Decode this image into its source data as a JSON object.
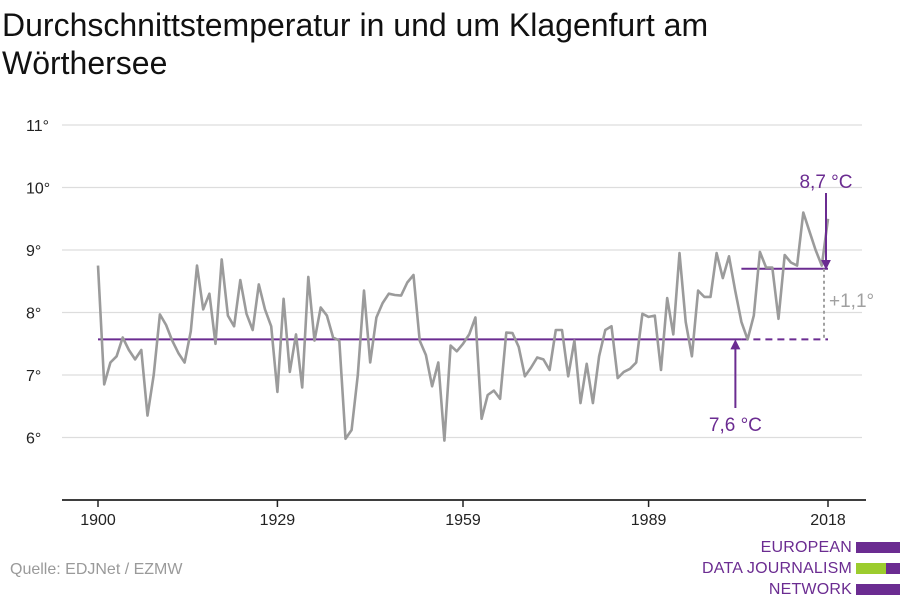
{
  "title": "Durchschnittstemperatur in und um Klagenfurt am Wörthersee",
  "source": "Quelle: EDJNet / EZMW",
  "logo": {
    "lines": [
      "EUROPEAN",
      "DATA JOURNALISM",
      "NETWORK"
    ],
    "colors": {
      "purple": "#6b2c91",
      "green": "#9ccc2e"
    }
  },
  "colors": {
    "series": "#9b9b9b",
    "accent": "#6b2c91",
    "grid": "#dddddd",
    "axis": "#222222"
  },
  "chart_data": {
    "type": "line",
    "title": "Durchschnittstemperatur in und um Klagenfurt am Wörthersee",
    "xlabel": "",
    "ylabel": "",
    "xlim": [
      1900,
      2018
    ],
    "ylim": [
      5,
      11
    ],
    "x_ticks": [
      1900,
      1929,
      1959,
      1989,
      2018
    ],
    "x_tick_labels": [
      "1900",
      "1929",
      "1959",
      "1989",
      "2018"
    ],
    "y_ticks": [
      6,
      7,
      8,
      9,
      10,
      11
    ],
    "y_tick_labels": [
      "6°",
      "7°",
      "8°",
      "9°",
      "10°",
      "11°"
    ],
    "grid": true,
    "series": [
      {
        "x": [
          1900,
          1901,
          1902,
          1903,
          1904,
          1905,
          1906,
          1907,
          1908,
          1909,
          1910,
          1911,
          1912,
          1913,
          1914,
          1915,
          1916,
          1917,
          1918,
          1919,
          1920,
          1921,
          1922,
          1923,
          1924,
          1925,
          1926,
          1927,
          1928,
          1929,
          1930,
          1931,
          1932,
          1933,
          1934,
          1935,
          1936,
          1937,
          1938,
          1939,
          1940,
          1941,
          1942,
          1943,
          1944,
          1945,
          1946,
          1947,
          1948,
          1949,
          1950,
          1951,
          1952,
          1953,
          1954,
          1955,
          1956,
          1957,
          1958,
          1959,
          1960,
          1961,
          1962,
          1963,
          1964,
          1965,
          1966,
          1967,
          1968,
          1969,
          1970,
          1971,
          1972,
          1973,
          1974,
          1975,
          1976,
          1977,
          1978,
          1979,
          1980,
          1981,
          1982,
          1983,
          1984,
          1985,
          1986,
          1987,
          1988,
          1989,
          1990,
          1991,
          1992,
          1993,
          1994,
          1995,
          1996,
          1997,
          1998,
          1999,
          2000,
          2001,
          2002,
          2003,
          2004,
          2005,
          2006,
          2007,
          2008,
          2009,
          2010,
          2011,
          2012,
          2013,
          2014,
          2015,
          2016,
          2017,
          2018
        ],
        "values": [
          8.75,
          6.85,
          7.2,
          7.3,
          7.6,
          7.4,
          7.25,
          7.4,
          6.35,
          7.0,
          7.97,
          7.8,
          7.55,
          7.35,
          7.2,
          7.7,
          8.75,
          8.05,
          8.3,
          7.5,
          8.85,
          7.95,
          7.78,
          8.52,
          7.98,
          7.72,
          8.45,
          8.05,
          7.78,
          6.73,
          8.22,
          7.05,
          7.65,
          6.8,
          8.57,
          7.55,
          8.08,
          7.95,
          7.6,
          7.55,
          5.98,
          6.12,
          7.0,
          8.35,
          7.2,
          7.92,
          8.15,
          8.3,
          8.28,
          8.27,
          8.48,
          8.6,
          7.55,
          7.32,
          6.82,
          7.2,
          5.95,
          7.47,
          7.38,
          7.5,
          7.65,
          7.92,
          6.3,
          6.68,
          6.75,
          6.62,
          7.68,
          7.67,
          7.45,
          6.98,
          7.12,
          7.28,
          7.25,
          7.08,
          7.72,
          7.72,
          6.98,
          7.55,
          6.55,
          7.18,
          6.55,
          7.3,
          7.72,
          7.78,
          6.95,
          7.05,
          7.1,
          7.2,
          7.98,
          7.93,
          7.95,
          7.08,
          8.23,
          7.65,
          8.95,
          7.85,
          7.3,
          8.35,
          8.25,
          8.25,
          8.95,
          8.55,
          8.9,
          8.35,
          7.85,
          7.57,
          7.95,
          8.97,
          8.72,
          8.72,
          7.9,
          8.92,
          8.8,
          8.75,
          9.6,
          9.3,
          9.0,
          8.75,
          9.5
        ]
      }
    ],
    "baseline": {
      "label": "7,6 °C",
      "value": 7.57,
      "x_start": 1900,
      "x_end": 2018,
      "dashed_from": 2004
    },
    "recent": {
      "label": "8,7 °C",
      "value": 8.7,
      "x_start": 2004,
      "x_end": 2018
    },
    "difference": {
      "label": "+1,1°",
      "x": 2018
    }
  }
}
